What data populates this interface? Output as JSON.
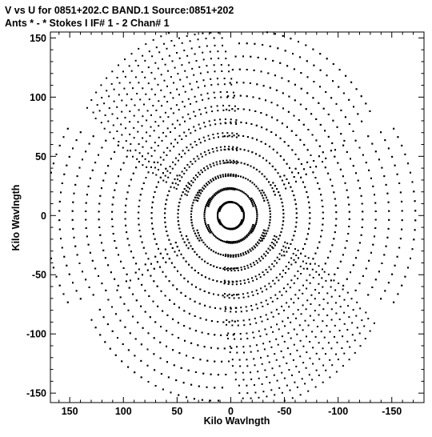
{
  "header": {
    "line1": "V vs U for 0851+202.C BAND.1   Source:0851+202",
    "line2": "Ants * - *    Stokes I  IF# 1 - 2  Chan# 1"
  },
  "chart_data": {
    "type": "scatter",
    "title": "V vs U for 0851+202.C BAND.1   Source:0851+202",
    "subtitle": "Ants * - *    Stokes I  IF# 1 - 2  Chan# 1",
    "xlabel": "Kilo Wavlngth",
    "ylabel": "Kilo Wavlngth",
    "xlim": [
      168,
      -180
    ],
    "ylim": [
      -158,
      155
    ],
    "xticks": [
      150,
      100,
      50,
      0,
      -50,
      -100,
      -150
    ],
    "yticks": [
      150,
      100,
      50,
      0,
      -50,
      -100,
      -150
    ],
    "xtick_labels": [
      "150",
      "100",
      "50",
      "0",
      "-50",
      "-100",
      "-150"
    ],
    "ytick_labels": [
      "150",
      "100",
      "50",
      "0",
      "-50",
      "-100",
      "-150"
    ],
    "grid": false,
    "marker_color": "#000000",
    "uv_tracks": {
      "arms": [
        {
          "angle_deg": 60,
          "radius_max": 165,
          "curl": 0.55
        },
        {
          "angle_deg": 120,
          "radius_max": 160,
          "curl": 0.55
        },
        {
          "angle_deg": 180,
          "radius_max": 172,
          "curl": 0.45
        },
        {
          "angle_deg": 240,
          "radius_max": 158,
          "curl": 0.55
        },
        {
          "angle_deg": 300,
          "radius_max": 160,
          "curl": 0.55
        },
        {
          "angle_deg": 0,
          "radius_max": 172,
          "curl": 0.45
        }
      ],
      "baselines_per_arm": 14,
      "points_per_baseline": 20,
      "point_symmetry": "conjugate (u,v) and (-u,-v)"
    }
  }
}
